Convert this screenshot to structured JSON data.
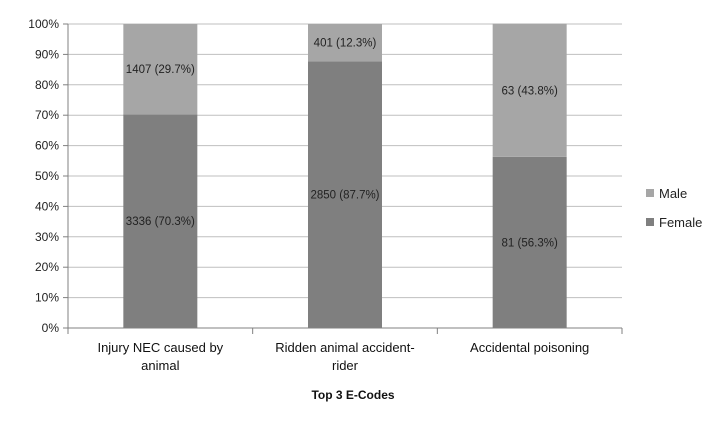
{
  "chart_data": {
    "type": "bar",
    "stacked": "percent",
    "categories": [
      [
        "Injury NEC caused by",
        "animal"
      ],
      [
        "Ridden animal accident-",
        "rider"
      ],
      [
        "Accidental poisoning"
      ]
    ],
    "series": [
      {
        "name": "Female",
        "color": "#7f7f7f",
        "values": [
          70.3,
          87.7,
          56.3
        ],
        "labels": [
          "3336 (70.3%)",
          "2850 (87.7%)",
          "81 (56.3%)"
        ]
      },
      {
        "name": "Male",
        "color": "#a6a6a6",
        "values": [
          29.7,
          12.3,
          43.8
        ],
        "labels": [
          "1407 (29.7%)",
          "401 (12.3%)",
          "63 (43.8%)"
        ]
      }
    ],
    "xlabel": "Top 3 E-Codes",
    "ylabel": "",
    "ylim": [
      0,
      100
    ],
    "yticks": [
      "0%",
      "10%",
      "20%",
      "30%",
      "40%",
      "50%",
      "60%",
      "70%",
      "80%",
      "90%",
      "100%"
    ],
    "legend_order": [
      "Male",
      "Female"
    ],
    "legend_position": "right",
    "grid": true
  }
}
